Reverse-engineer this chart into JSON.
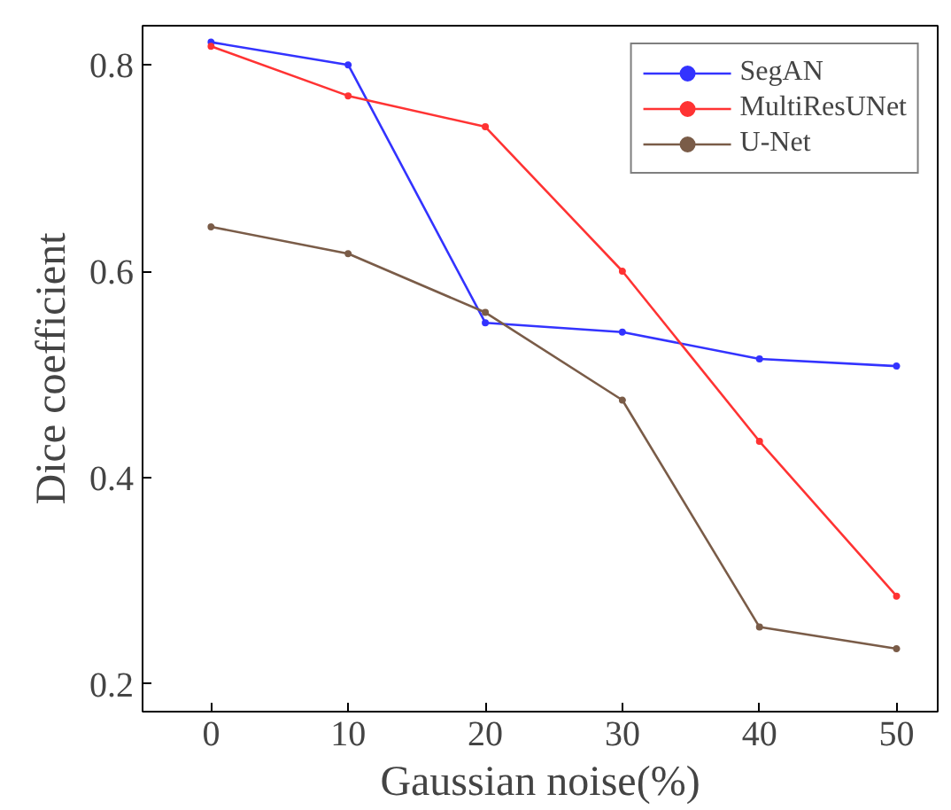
{
  "chart_data": {
    "type": "line",
    "xlabel": "Gaussian noise(%)",
    "ylabel": "Dice coefficient",
    "x": [
      0,
      10,
      20,
      30,
      40,
      50
    ],
    "series": [
      {
        "name": "SegAN",
        "color": "#3333ff",
        "values": [
          0.822,
          0.8,
          0.55,
          0.541,
          0.515,
          0.508
        ]
      },
      {
        "name": "MultiResUNet",
        "color": "#ff3333",
        "values": [
          0.818,
          0.77,
          0.74,
          0.6,
          0.435,
          0.285
        ]
      },
      {
        "name": "U-Net",
        "color": "#7a5c48",
        "values": [
          0.643,
          0.617,
          0.56,
          0.475,
          0.255,
          0.234
        ]
      }
    ],
    "xlim": [
      -5,
      53
    ],
    "ylim": [
      0.173,
      0.838
    ],
    "xticks": [
      0,
      10,
      20,
      30,
      40,
      50
    ],
    "yticks": [
      0.2,
      0.4,
      0.6,
      0.8
    ],
    "grid": false,
    "legend": "top right",
    "marker": "circle",
    "line_style": "solid"
  }
}
